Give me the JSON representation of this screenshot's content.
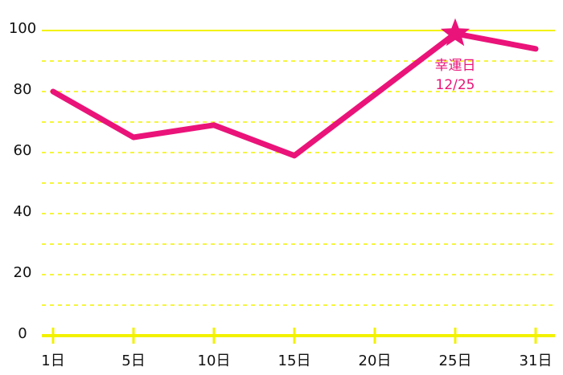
{
  "chart_data": {
    "type": "line",
    "categories": [
      "1日",
      "5日",
      "10日",
      "15日",
      "20日",
      "25日",
      "31日"
    ],
    "values": [
      80,
      65,
      69,
      59,
      79,
      99,
      94
    ],
    "color": "#ea1379",
    "axis_color": "#f2f200",
    "ylim": [
      0,
      100
    ],
    "yticks": [
      0,
      20,
      40,
      60,
      80,
      100
    ],
    "minor_yticks": [
      10,
      30,
      50,
      70,
      90
    ],
    "grid": true,
    "annotation": {
      "category": "25日",
      "text": [
        "幸運日",
        "12/25"
      ]
    }
  }
}
